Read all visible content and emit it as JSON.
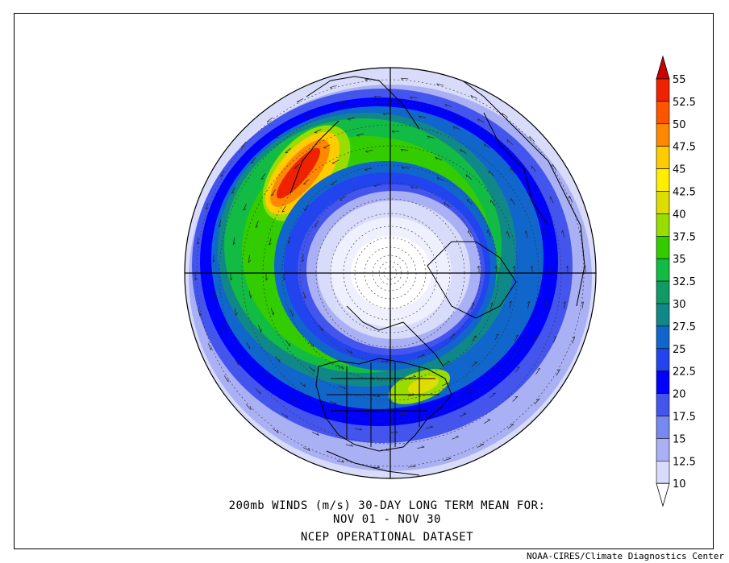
{
  "map": {
    "caption_line1": "200mb WINDS (m/s)   30-DAY LONG TERM MEAN FOR:",
    "caption_line2": "NOV 01 - NOV 30",
    "caption_line3": "NCEP OPERATIONAL DATASET",
    "credit": "NOAA-CIRES/Climate Diagnostics Center",
    "projection": "north-polar-stereographic"
  },
  "colorbar": {
    "units": "m/s",
    "levels": [
      "55",
      "52.5",
      "50",
      "47.5",
      "45",
      "42.5",
      "40",
      "37.5",
      "35",
      "32.5",
      "30",
      "27.5",
      "25",
      "22.5",
      "20",
      "17.5",
      "15",
      "12.5",
      "10"
    ],
    "colors": [
      "#cc0000",
      "#ee2200",
      "#ff5500",
      "#ff8800",
      "#ffcc00",
      "#ffee00",
      "#dddd00",
      "#99dd00",
      "#33cc00",
      "#11bb44",
      "#119966",
      "#118888",
      "#1166cc",
      "#2244ee",
      "#0000ff",
      "#4455ee",
      "#7788ee",
      "#aab0f4",
      "#d8dcfa"
    ]
  }
}
